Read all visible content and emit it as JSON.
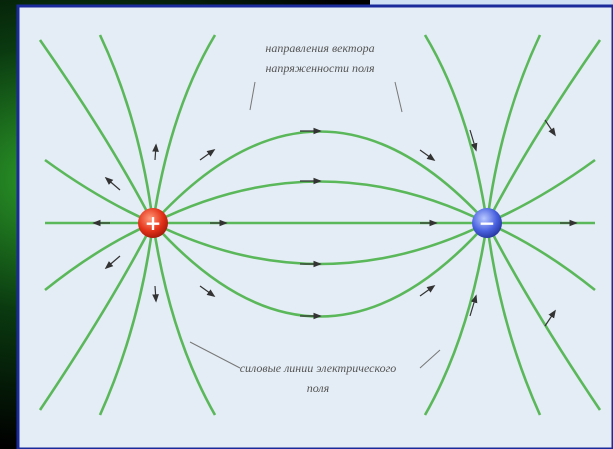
{
  "labels": {
    "vector_direction": [
      "направления вектора",
      "напряженности поля"
    ],
    "field_lines": [
      "силовые линии электрического",
      "поля"
    ],
    "positive": "+",
    "negative": "−"
  }
}
